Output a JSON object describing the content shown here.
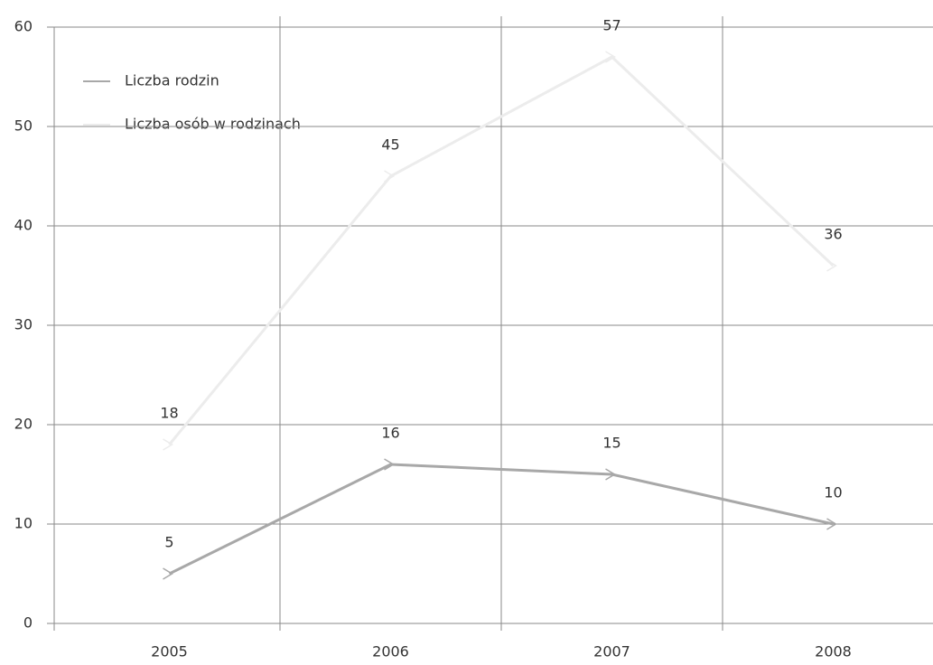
{
  "chart_data": {
    "type": "line",
    "categories": [
      "2005",
      "2006",
      "2007",
      "2008"
    ],
    "series": [
      {
        "name": "Liczba rodzin",
        "color": "#a8a8a8",
        "values": [
          5,
          16,
          15,
          10
        ]
      },
      {
        "name": "Liczba osób w rodzinach",
        "color": "#ececec",
        "values": [
          18,
          45,
          57,
          36
        ]
      }
    ],
    "ylim": [
      0,
      60
    ],
    "yticks": [
      0,
      10,
      20,
      30,
      40,
      50,
      60
    ],
    "grid": true,
    "legend": "top-left"
  }
}
